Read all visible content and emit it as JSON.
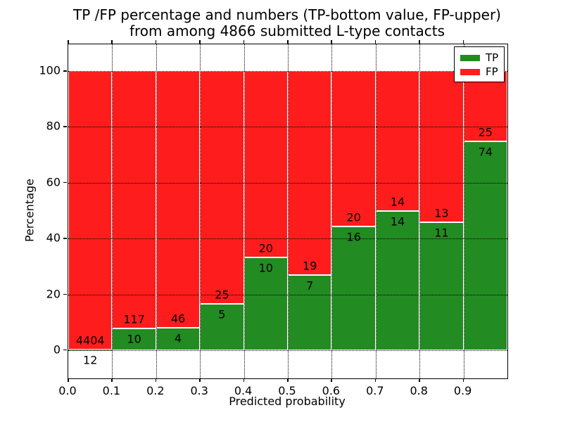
{
  "chart_data": {
    "type": "bar",
    "stacked": true,
    "title_line1": "TP /FP percentage and numbers (TP-bottom value, FP-upper)",
    "title_line2": "from among 4866 submitted L-type contacts",
    "xlabel": "Predicted probability",
    "ylabel": "Percentage",
    "total_submitted": 4866,
    "xlim": [
      0.0,
      1.0
    ],
    "ylim": [
      -10.1,
      109.6
    ],
    "x_ticks": [
      "0.0",
      "0.1",
      "0.2",
      "0.3",
      "0.4",
      "0.5",
      "0.6",
      "0.7",
      "0.8",
      "0.9"
    ],
    "y_ticks": [
      0,
      20,
      40,
      60,
      80,
      100
    ],
    "grid": true,
    "grid_style": "dotted",
    "legend": {
      "position": "upper right",
      "entries": [
        {
          "label": "TP",
          "color": "#228b22"
        },
        {
          "label": "FP",
          "color": "#ff1c1c"
        }
      ]
    },
    "bar_note": "Each 0.1-wide bin stacks TP% (green, bottom) and FP% (red, top) to 100%; labels show raw counts (TP count below boundary, FP count above)",
    "bins": [
      {
        "x_range": [
          0.0,
          0.1
        ],
        "tp_count": 12,
        "fp_count": 4404,
        "tp_pct": 0.27,
        "fp_pct": 99.73
      },
      {
        "x_range": [
          0.1,
          0.2
        ],
        "tp_count": 10,
        "fp_count": 117,
        "tp_pct": 7.87,
        "fp_pct": 92.13
      },
      {
        "x_range": [
          0.2,
          0.3
        ],
        "tp_count": 4,
        "fp_count": 46,
        "tp_pct": 8.0,
        "fp_pct": 92.0
      },
      {
        "x_range": [
          0.3,
          0.4
        ],
        "tp_count": 5,
        "fp_count": 25,
        "tp_pct": 16.67,
        "fp_pct": 83.33
      },
      {
        "x_range": [
          0.4,
          0.5
        ],
        "tp_count": 10,
        "fp_count": 20,
        "tp_pct": 33.33,
        "fp_pct": 66.67
      },
      {
        "x_range": [
          0.5,
          0.6
        ],
        "tp_count": 7,
        "fp_count": 19,
        "tp_pct": 26.92,
        "fp_pct": 73.08
      },
      {
        "x_range": [
          0.6,
          0.7
        ],
        "tp_count": 16,
        "fp_count": 20,
        "tp_pct": 44.44,
        "fp_pct": 55.56
      },
      {
        "x_range": [
          0.7,
          0.8
        ],
        "tp_count": 14,
        "fp_count": 14,
        "tp_pct": 50.0,
        "fp_pct": 50.0
      },
      {
        "x_range": [
          0.8,
          0.9
        ],
        "tp_count": 11,
        "fp_count": 13,
        "tp_pct": 45.83,
        "fp_pct": 54.17
      },
      {
        "x_range": [
          0.9,
          1.0
        ],
        "tp_count": 74,
        "fp_count": 25,
        "tp_pct": 74.75,
        "fp_pct": 25.25
      }
    ]
  },
  "colors": {
    "tp_green": "#228b22",
    "fp_red": "#ff1c1c",
    "grid_black": "#000000",
    "background": "#ffffff",
    "bar_edge": "#ffffff"
  }
}
